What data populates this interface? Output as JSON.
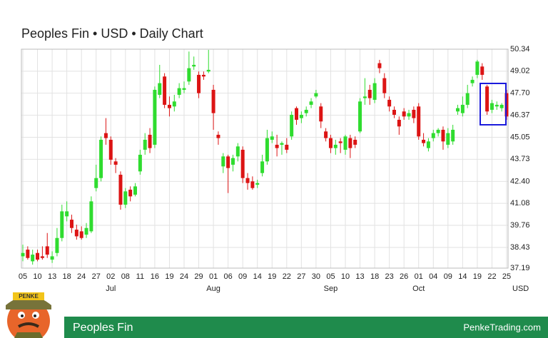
{
  "chart_data": {
    "type": "candlestick",
    "title": "Peoples Fin • USD • Daily Chart",
    "categories": [
      "05",
      null,
      null,
      "10",
      null,
      null,
      "13",
      null,
      null,
      "18",
      null,
      null,
      "24",
      null,
      null,
      "27",
      null,
      null,
      "02",
      null,
      null,
      "08",
      null,
      null,
      "11",
      null,
      null,
      "16",
      null,
      null,
      "19",
      null,
      null,
      "24",
      null,
      null,
      "29",
      null,
      null,
      "01",
      null,
      null,
      "06",
      null,
      null,
      "09",
      null,
      null,
      "14",
      null,
      null,
      "19",
      null,
      null,
      "22",
      null,
      null,
      "27",
      null,
      null,
      "30",
      null,
      null,
      "05",
      null,
      null,
      "10",
      null,
      null,
      "13",
      null,
      null,
      "18",
      null,
      null,
      "23",
      null,
      null,
      "26",
      null,
      null,
      "01",
      null,
      null,
      "04",
      null,
      null,
      "09",
      null,
      null,
      "14",
      null,
      null,
      "19",
      null,
      null,
      "22",
      null,
      null,
      "25"
    ],
    "months": [
      null,
      null,
      null,
      null,
      null,
      null,
      null,
      null,
      null,
      null,
      null,
      null,
      null,
      null,
      null,
      null,
      null,
      null,
      "Jul",
      null,
      null,
      null,
      null,
      null,
      null,
      null,
      null,
      null,
      null,
      null,
      null,
      null,
      null,
      null,
      null,
      null,
      null,
      null,
      null,
      "Aug",
      null,
      null,
      null,
      null,
      null,
      null,
      null,
      null,
      null,
      null,
      null,
      null,
      null,
      null,
      null,
      null,
      null,
      null,
      null,
      null,
      null,
      null,
      null,
      "Sep",
      null,
      null,
      null,
      null,
      null,
      null,
      null,
      null,
      null,
      null,
      null,
      null,
      null,
      null,
      null,
      null,
      null,
      "Oct",
      null,
      null,
      null,
      null,
      null,
      null,
      null,
      null,
      null,
      null,
      null,
      null,
      null,
      null,
      null,
      null,
      null,
      null
    ],
    "currency_label": "USD",
    "up_color": "#2fdc2f",
    "down_color": "#dc1414",
    "series": {
      "open": [
        37.9,
        38.3,
        37.6,
        38.1,
        37.9,
        38.5,
        37.7,
        38.1,
        39.0,
        40.3,
        40.1,
        39.5,
        39.4,
        39.2,
        39.4,
        42.0,
        42.6,
        45.3,
        44.9,
        43.6,
        42.8,
        41.0,
        41.9,
        41.6,
        43.0,
        44.3,
        45.2,
        44.6,
        47.6,
        48.7,
        47.0,
        46.9,
        47.6,
        47.9,
        48.4,
        49.3,
        48.8,
        48.8,
        49.0,
        47.9,
        45.2,
        43.3,
        43.9,
        43.4,
        43.9,
        44.3,
        42.6,
        42.4,
        42.2,
        42.9,
        43.6,
        44.9,
        44.6,
        44.6,
        44.6,
        45.1,
        46.8,
        46.2,
        46.5,
        47.0,
        47.5,
        46.9,
        45.4,
        45.0,
        44.4,
        44.8,
        44.3,
        45.0,
        44.9,
        45.4,
        47.4,
        47.9,
        47.3,
        49.5,
        48.6,
        47.3,
        46.7,
        46.1,
        46.6,
        46.3,
        46.7,
        46.9,
        44.9,
        44.4,
        45.0,
        45.3,
        45.5,
        44.6,
        44.8,
        46.6,
        46.5,
        47.0,
        48.3,
        48.8,
        49.3,
        48.1,
        46.7,
        46.9,
        46.8,
        47.7
      ],
      "high": [
        38.6,
        38.5,
        38.3,
        38.3,
        38.5,
        39.3,
        38.2,
        39.6,
        41.0,
        41.2,
        40.4,
        39.8,
        39.7,
        39.9,
        41.5,
        43.4,
        45.1,
        46.2,
        45.1,
        43.8,
        43.0,
        42.0,
        42.1,
        42.3,
        44.3,
        45.3,
        45.6,
        48.1,
        49.4,
        48.9,
        47.5,
        47.6,
        48.3,
        48.4,
        50.2,
        49.9,
        49.0,
        49.0,
        50.3,
        48.2,
        45.4,
        44.1,
        44.0,
        44.0,
        44.7,
        44.5,
        42.9,
        42.7,
        42.5,
        44.0,
        45.5,
        45.4,
        45.2,
        44.8,
        45.0,
        46.6,
        46.9,
        46.6,
        46.9,
        47.4,
        47.9,
        47.1,
        45.6,
        45.2,
        44.9,
        45.0,
        45.2,
        45.2,
        45.1,
        47.4,
        48.6,
        48.2,
        48.6,
        49.7,
        48.9,
        47.5,
        46.9,
        46.3,
        46.8,
        46.7,
        46.9,
        47.1,
        45.3,
        45.0,
        45.5,
        45.6,
        45.7,
        45.6,
        45.8,
        47.0,
        47.5,
        48.2,
        48.7,
        49.7,
        49.5,
        48.2,
        47.3,
        47.2,
        47.1,
        47.9
      ],
      "low": [
        37.6,
        37.7,
        37.4,
        37.6,
        37.7,
        37.8,
        37.5,
        37.9,
        38.8,
        40.0,
        39.3,
        38.9,
        38.9,
        39.0,
        39.3,
        41.8,
        42.4,
        44.6,
        43.4,
        42.9,
        40.7,
        40.8,
        41.2,
        41.5,
        42.8,
        44.0,
        44.1,
        44.4,
        47.4,
        46.8,
        46.3,
        46.6,
        47.4,
        47.7,
        48.2,
        49.1,
        47.4,
        48.5,
        48.9,
        45.5,
        44.6,
        42.9,
        41.7,
        43.0,
        43.6,
        42.3,
        41.9,
        41.9,
        42.0,
        42.7,
        43.4,
        44.7,
        43.9,
        44.0,
        44.1,
        44.9,
        45.8,
        45.9,
        46.3,
        46.8,
        47.4,
        45.6,
        44.8,
        44.1,
        44.0,
        44.1,
        44.0,
        43.8,
        44.4,
        45.3,
        47.0,
        47.0,
        47.1,
        48.9,
        47.4,
        46.6,
        46.2,
        45.2,
        46.1,
        46.1,
        45.9,
        44.9,
        44.5,
        44.2,
        44.8,
        45.1,
        44.3,
        44.4,
        44.6,
        46.4,
        46.3,
        46.8,
        48.1,
        48.6,
        48.5,
        46.4,
        46.5,
        46.7,
        46.6,
        46.1
      ],
      "close": [
        38.1,
        37.8,
        38.0,
        37.7,
        37.8,
        38.0,
        37.9,
        39.0,
        40.6,
        40.6,
        39.6,
        39.1,
        39.0,
        39.6,
        41.2,
        42.6,
        44.9,
        45.0,
        43.7,
        43.4,
        41.0,
        41.8,
        41.5,
        42.1,
        44.0,
        44.9,
        44.4,
        47.9,
        48.3,
        47.0,
        46.8,
        47.2,
        48.0,
        48.0,
        49.2,
        49.4,
        47.7,
        48.7,
        49.1,
        46.5,
        45.0,
        43.9,
        43.2,
        43.8,
        44.5,
        42.6,
        42.3,
        42.0,
        42.3,
        43.6,
        45.0,
        45.1,
        44.4,
        44.7,
        44.3,
        46.4,
        46.1,
        46.4,
        46.7,
        47.2,
        47.7,
        46.0,
        45.0,
        44.4,
        44.6,
        44.7,
        45.1,
        44.4,
        44.6,
        47.2,
        47.5,
        47.4,
        48.3,
        49.2,
        47.7,
        46.9,
        46.4,
        45.7,
        46.3,
        46.5,
        46.2,
        45.1,
        44.7,
        44.8,
        45.3,
        45.5,
        44.8,
        45.3,
        45.5,
        46.8,
        47.0,
        47.7,
        48.5,
        49.6,
        48.8,
        46.6,
        47.1,
        47.0,
        47.0,
        46.3
      ]
    },
    "ylim": [
      37.19,
      50.34
    ],
    "yticks": [
      37.19,
      38.43,
      39.76,
      41.08,
      {
        "value": 42.4,
        "label": "42.40"
      },
      43.73,
      45.05,
      46.37,
      {
        "value": 47.7,
        "label": "47.70"
      },
      49.02,
      50.34
    ],
    "grid": true
  },
  "footer": {
    "name": "Peoples Fin",
    "site": "PenkeTrading.com",
    "logo_text": "PENKE"
  }
}
